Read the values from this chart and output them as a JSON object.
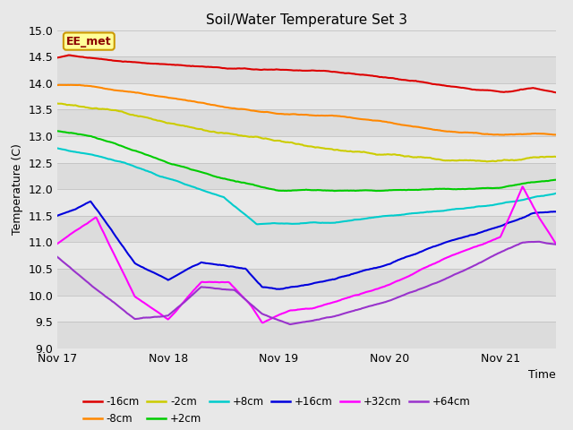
{
  "title": "Soil/Water Temperature Set 3",
  "xlabel": "Time",
  "ylabel": "Temperature (C)",
  "ylim": [
    9.0,
    15.0
  ],
  "yticks": [
    9.0,
    9.5,
    10.0,
    10.5,
    11.0,
    11.5,
    12.0,
    12.5,
    13.0,
    13.5,
    14.0,
    14.5,
    15.0
  ],
  "annotation_text": "EE_met",
  "series_colors": {
    "-16cm": "#dd0000",
    "-8cm": "#ff8800",
    "-2cm": "#cccc00",
    "+2cm": "#00cc00",
    "+8cm": "#00cccc",
    "+16cm": "#0000dd",
    "+32cm": "#ff00ff",
    "+64cm": "#9933cc"
  },
  "x_tick_labels": [
    "Nov 17",
    "Nov 18",
    "Nov 19",
    "Nov 20",
    "Nov 21"
  ],
  "legend_row1": [
    "-16cm",
    "-8cm",
    "-2cm",
    "+2cm",
    "+8cm",
    "+16cm"
  ],
  "legend_row2": [
    "+32cm",
    "+64cm"
  ],
  "total_days": 4.5
}
